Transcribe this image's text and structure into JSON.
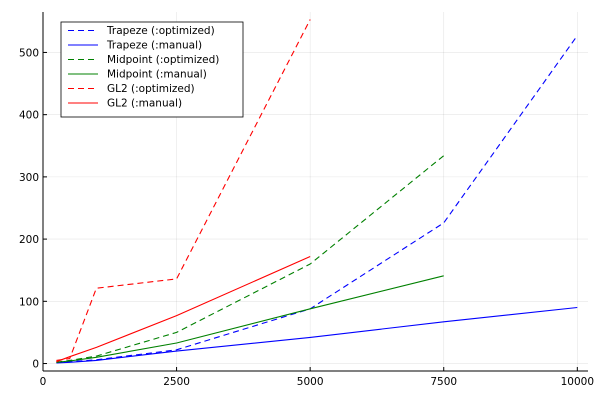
{
  "chart_data": {
    "type": "line",
    "title": "",
    "xlabel": "",
    "ylabel": "",
    "xlim": [
      0,
      10200
    ],
    "ylim": [
      -12,
      565
    ],
    "xticks": [
      0,
      2500,
      5000,
      7500,
      10000
    ],
    "yticks": [
      0,
      100,
      200,
      300,
      400,
      500
    ],
    "grid": true,
    "legend_position": "top-left",
    "series": [
      {
        "name": "Trapeze (:optimized)",
        "color": "#0000ff",
        "dash": "dashed",
        "x": [
          250,
          500,
          1000,
          2500,
          5000,
          7500,
          10000
        ],
        "y": [
          2,
          3,
          6,
          22,
          88,
          226,
          527
        ]
      },
      {
        "name": "Trapeze (:manual)",
        "color": "#0000ff",
        "dash": "solid",
        "x": [
          250,
          500,
          1000,
          2500,
          5000,
          7500,
          10000
        ],
        "y": [
          1,
          2,
          5,
          20,
          42,
          67,
          90
        ]
      },
      {
        "name": "Midpoint (:optimized)",
        "color": "#008000",
        "dash": "dashed",
        "x": [
          250,
          500,
          1000,
          2500,
          5000,
          7500
        ],
        "y": [
          2,
          5,
          12,
          50,
          160,
          334
        ]
      },
      {
        "name": "Midpoint (:manual)",
        "color": "#008000",
        "dash": "solid",
        "x": [
          250,
          500,
          1000,
          2500,
          5000,
          7500
        ],
        "y": [
          2,
          4,
          10,
          33,
          88,
          141
        ]
      },
      {
        "name": "GL2 (:optimized)",
        "color": "#ff0000",
        "dash": "dashed",
        "x": [
          250,
          500,
          1000,
          2500,
          5000
        ],
        "y": [
          5,
          8,
          121,
          136,
          553
        ]
      },
      {
        "name": "GL2 (:manual)",
        "color": "#ff0000",
        "dash": "solid",
        "x": [
          250,
          500,
          1000,
          2500,
          5000
        ],
        "y": [
          3,
          11,
          26,
          77,
          172
        ]
      }
    ]
  }
}
